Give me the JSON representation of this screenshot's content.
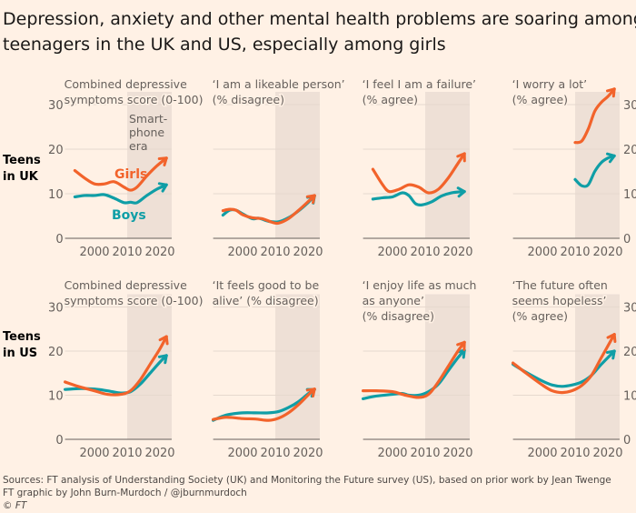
{
  "title_lines": [
    "Depression, anxiety and other mental health problems are soaring among",
    "teenagers in the UK and US, especially among girls"
  ],
  "colors": {
    "girls": "#f2632b",
    "boys": "#0f9ea6",
    "background": "#fff1e5",
    "smartphone_era_shade": "#eee0d6"
  },
  "labels": {
    "girls": "Girls",
    "boys": "Boys",
    "smartphone_era": [
      "Smart-",
      "phone",
      "era"
    ]
  },
  "footer": {
    "sources": "Sources: FT analysis of Understanding Society (UK) and Monitoring the Future survey (US), based on prior work by Jean Twenge",
    "credit": "FT graphic by John Burn-Murdoch / @jburnmurdoch",
    "copyright": "© FT"
  },
  "chart_data": {
    "type": "line",
    "xticks": [
      2000,
      2010,
      2020
    ],
    "yticks": [
      0,
      10,
      20,
      30
    ],
    "xlim": [
      1991,
      2023
    ],
    "ylim": [
      0,
      30
    ],
    "smartphone_era_start": 2010,
    "rows": [
      {
        "label": [
          "Teens",
          "in UK"
        ],
        "panels": [
          {
            "title": [
              "Combined depressive",
              "symptoms score (0-100)"
            ],
            "series": [
              {
                "name": "Girls",
                "x": [
                  1994,
                  1997,
                  2000,
                  2003,
                  2006,
                  2009,
                  2011,
                  2013,
                  2016,
                  2019,
                  2022
                ],
                "y": [
                  15.2,
                  13.5,
                  12.2,
                  12.2,
                  12.7,
                  11.5,
                  10.8,
                  11.5,
                  14,
                  16.2,
                  18
                ]
              },
              {
                "name": "Boys",
                "x": [
                  1994,
                  1997,
                  2000,
                  2003,
                  2006,
                  2009,
                  2011,
                  2013,
                  2016,
                  2019,
                  2022
                ],
                "y": [
                  9.3,
                  9.6,
                  9.6,
                  9.8,
                  9,
                  8,
                  8.1,
                  8,
                  9.6,
                  11,
                  12
                ]
              }
            ]
          },
          {
            "title": [
              "‘I am a likeable person’",
              "(% disagree)"
            ],
            "series": [
              {
                "name": "Girls",
                "x": [
                  1994,
                  1996,
                  1998,
                  2000,
                  2003,
                  2006,
                  2009,
                  2011,
                  2014,
                  2017,
                  2020,
                  2022
                ],
                "y": [
                  6.2,
                  6.5,
                  6.3,
                  5.3,
                  4.6,
                  4.4,
                  3.6,
                  3.4,
                  4.4,
                  6.2,
                  8.2,
                  9.6
                ]
              },
              {
                "name": "Boys",
                "x": [
                  1994,
                  1996,
                  1998,
                  2000,
                  2003,
                  2005,
                  2008,
                  2011,
                  2014,
                  2017,
                  2020,
                  2022
                ],
                "y": [
                  5.2,
                  6.3,
                  6.3,
                  5.5,
                  4.4,
                  4.5,
                  3.8,
                  3.7,
                  4.6,
                  6.1,
                  8.0,
                  9.5
                ]
              }
            ]
          },
          {
            "title": [
              "‘I feel I am a failure’",
              "(% agree)"
            ],
            "series": [
              {
                "name": "Girls",
                "x": [
                  1994,
                  1997,
                  1999,
                  2002,
                  2005,
                  2008,
                  2011,
                  2014,
                  2017,
                  2020,
                  2022
                ],
                "y": [
                  15.5,
                  12,
                  10.5,
                  11,
                  12,
                  11.5,
                  10.2,
                  11,
                  13.5,
                  16.8,
                  19
                ]
              },
              {
                "name": "Boys",
                "x": [
                  1994,
                  1997,
                  2000,
                  2003,
                  2005,
                  2007,
                  2009,
                  2012,
                  2015,
                  2018,
                  2022
                ],
                "y": [
                  8.8,
                  9.1,
                  9.3,
                  10.2,
                  9.6,
                  7.8,
                  7.5,
                  8.2,
                  9.5,
                  10.2,
                  10.5
                ]
              }
            ]
          },
          {
            "title": [
              "‘I worry a lot’",
              "(% agree)"
            ],
            "series": [
              {
                "name": "Girls",
                "x": [
                  2010,
                  2012,
                  2014,
                  2016,
                  2018,
                  2020,
                  2022
                ],
                "y": [
                  21.5,
                  21.8,
                  24.5,
                  28.5,
                  30.5,
                  31.8,
                  33.5
                ]
              },
              {
                "name": "Boys",
                "x": [
                  2010,
                  2012,
                  2014,
                  2016,
                  2018,
                  2020,
                  2022
                ],
                "y": [
                  13.2,
                  11.8,
                  12,
                  15,
                  17,
                  18,
                  18.5
                ]
              }
            ]
          }
        ]
      },
      {
        "label": [
          "Teens",
          "in US"
        ],
        "panels": [
          {
            "title": [
              "Combined depressive",
              "symptoms score (0-100)"
            ],
            "series": [
              {
                "name": "Girls",
                "x": [
                  1991,
                  1995,
                  2000,
                  2004,
                  2008,
                  2011,
                  2014,
                  2017,
                  2020,
                  2022
                ],
                "y": [
                  13,
                  12,
                  11,
                  10.2,
                  10.2,
                  11,
                  13.5,
                  17,
                  20.5,
                  23.3
                ]
              },
              {
                "name": "Boys",
                "x": [
                  1991,
                  1995,
                  2000,
                  2004,
                  2008,
                  2011,
                  2014,
                  2017,
                  2020,
                  2022
                ],
                "y": [
                  11.3,
                  11.5,
                  11.4,
                  11,
                  10.5,
                  10.8,
                  12.5,
                  15,
                  17.5,
                  19
                ]
              }
            ]
          },
          {
            "title": [
              "‘It feels good to be",
              "alive’ (% disagree)"
            ],
            "series": [
              {
                "name": "Girls",
                "x": [
                  1991,
                  1995,
                  2000,
                  2004,
                  2008,
                  2011,
                  2014,
                  2017,
                  2020,
                  2022
                ],
                "y": [
                  4.5,
                  5,
                  4.7,
                  4.6,
                  4.3,
                  4.8,
                  6,
                  7.8,
                  10,
                  11.4
                ]
              },
              {
                "name": "Boys",
                "x": [
                  1991,
                  1995,
                  2000,
                  2004,
                  2008,
                  2011,
                  2014,
                  2017,
                  2020,
                  2022
                ],
                "y": [
                  4.3,
                  5.5,
                  6,
                  6,
                  6,
                  6.3,
                  7.2,
                  8.5,
                  10.3,
                  11.3
                ]
              }
            ]
          },
          {
            "title": [
              "‘I enjoy life as much",
              "as anyone’",
              "(% disagree)"
            ],
            "series": [
              {
                "name": "Girls",
                "x": [
                  1991,
                  1995,
                  2000,
                  2004,
                  2008,
                  2011,
                  2014,
                  2017,
                  2020,
                  2022
                ],
                "y": [
                  11,
                  11,
                  10.8,
                  10,
                  9.5,
                  10.2,
                  13,
                  16.5,
                  20,
                  22
                ]
              },
              {
                "name": "Boys",
                "x": [
                  1991,
                  1995,
                  2000,
                  2003,
                  2005,
                  2008,
                  2011,
                  2014,
                  2017,
                  2020,
                  2022
                ],
                "y": [
                  9.2,
                  9.8,
                  10.2,
                  10.4,
                  10,
                  10,
                  10.8,
                  12.5,
                  15.5,
                  18.5,
                  20.2
                ]
              }
            ]
          },
          {
            "title": [
              "‘The future often",
              "seems hopeless’",
              "(% agree)"
            ],
            "series": [
              {
                "name": "Girls",
                "x": [
                  1991,
                  1995,
                  2000,
                  2003,
                  2006,
                  2009,
                  2012,
                  2015,
                  2018,
                  2022
                ],
                "y": [
                  17.3,
                  15,
                  12.3,
                  11,
                  10.6,
                  11,
                  12.2,
                  14.5,
                  18.5,
                  23.8
                ]
              },
              {
                "name": "Boys",
                "x": [
                  1991,
                  1995,
                  2000,
                  2003,
                  2006,
                  2009,
                  2012,
                  2015,
                  2018,
                  2022
                ],
                "y": [
                  17,
                  15.2,
                  13.2,
                  12.3,
                  12,
                  12.3,
                  13,
                  14.5,
                  17,
                  20
                ]
              }
            ]
          }
        ]
      }
    ]
  }
}
